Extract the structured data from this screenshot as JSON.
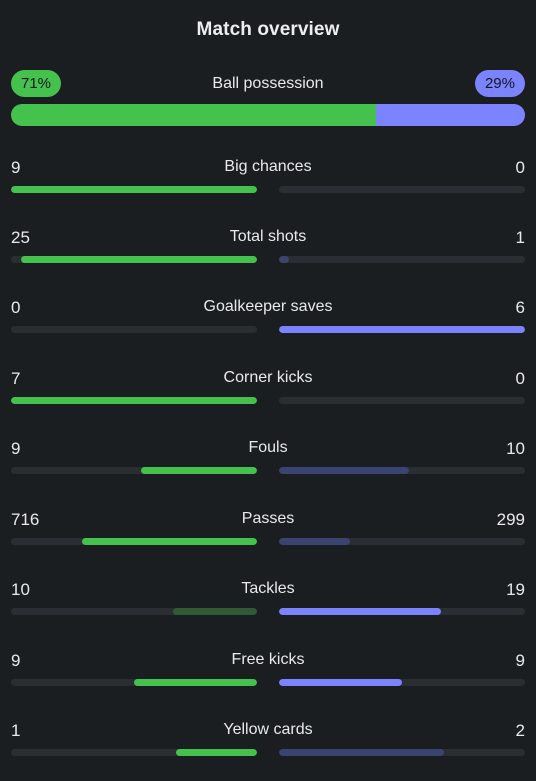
{
  "title": "Match overview",
  "colors": {
    "home": "#45c24d",
    "away": "#7b83ff",
    "home_dim": "#2f5a35",
    "away_dim": "#3b4370",
    "track": "#2a2e33",
    "background": "#1b1e21"
  },
  "possession": {
    "label": "Ball possession",
    "home_text": "71%",
    "away_text": "29%",
    "home_fraction": 0.71,
    "away_fraction": 0.29
  },
  "stats": [
    {
      "label": "Big chances",
      "home": "9",
      "away": "0",
      "home_fill": 1.0,
      "away_fill": 0.0,
      "home_style": "bright",
      "away_style": "bright"
    },
    {
      "label": "Total shots",
      "home": "25",
      "away": "1",
      "home_fill": 0.96,
      "away_fill": 0.04,
      "home_style": "bright",
      "away_style": "dim"
    },
    {
      "label": "Goalkeeper saves",
      "home": "0",
      "away": "6",
      "home_fill": 0.0,
      "away_fill": 1.0,
      "home_style": "bright",
      "away_style": "bright"
    },
    {
      "label": "Corner kicks",
      "home": "7",
      "away": "0",
      "home_fill": 1.0,
      "away_fill": 0.0,
      "home_style": "bright",
      "away_style": "bright"
    },
    {
      "label": "Fouls",
      "home": "9",
      "away": "10",
      "home_fill": 0.47,
      "away_fill": 0.53,
      "home_style": "bright",
      "away_style": "dim"
    },
    {
      "label": "Passes",
      "home": "716",
      "away": "299",
      "home_fill": 0.71,
      "away_fill": 0.29,
      "home_style": "bright",
      "away_style": "dim"
    },
    {
      "label": "Tackles",
      "home": "10",
      "away": "19",
      "home_fill": 0.34,
      "away_fill": 0.66,
      "home_style": "dim",
      "away_style": "bright"
    },
    {
      "label": "Free kicks",
      "home": "9",
      "away": "9",
      "home_fill": 0.5,
      "away_fill": 0.5,
      "home_style": "bright",
      "away_style": "bright"
    },
    {
      "label": "Yellow cards",
      "home": "1",
      "away": "2",
      "home_fill": 0.33,
      "away_fill": 0.67,
      "home_style": "bright",
      "away_style": "dim"
    }
  ]
}
